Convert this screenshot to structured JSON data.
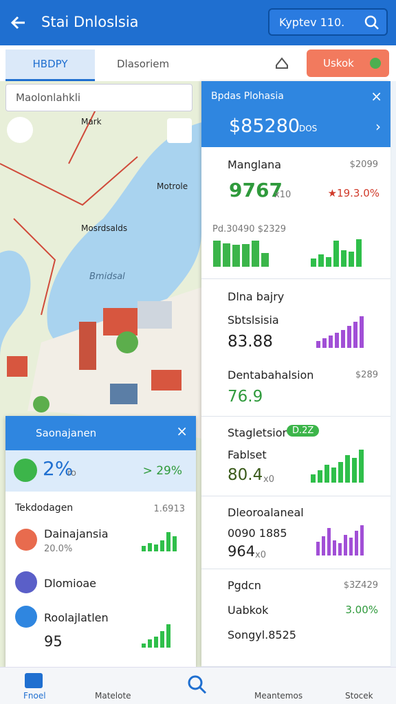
{
  "header": {
    "title": "Stai Dnloslsia",
    "search": "Kyptev 110."
  },
  "tabs": {
    "active": "HBDPY",
    "other": "Dlasoriem",
    "button": "Uskok"
  },
  "map": {
    "search": "Maolonlahkli",
    "labels": [
      "Mark",
      "Motrole",
      "Mosrdsalds",
      "Bmidsal"
    ]
  },
  "panel": {
    "title": "Bpdas Plohasia",
    "amount": "$85280",
    "unit": "DOS"
  },
  "cards": [
    {
      "title": "Manglana",
      "right": "$2099",
      "value": "9767",
      "suffix": "x10",
      "change": "★19.3.0%",
      "chart_label": "Pd.30490 $2329"
    },
    {
      "title": "Dlna bajry",
      "sub": "Sbtslsisia",
      "value": "83.88",
      "row2": "Dentabahalsion",
      "row2_right": "$289",
      "value2": "76.9"
    },
    {
      "title": "Stagletsior",
      "badge": "D.2Z",
      "sub": "Fablset",
      "value": "80.4",
      "suffix": "x0"
    },
    {
      "title": "Dleoroalaneal",
      "sub": "0090 1885",
      "value": "964",
      "suffix": "x0"
    },
    {
      "title": "Pgdcn",
      "right": "$3Z429",
      "sub": "Uabkok",
      "change": "3.00%",
      "row3": "Songyl.8525"
    }
  ],
  "overlay": {
    "title": "Saonajanen",
    "value": "2%",
    "suffix": "ro",
    "change": "> 29%",
    "section": "Tekdodagen",
    "section_right": "1.6913",
    "items": [
      {
        "title": "Dainajansia",
        "sub": "20.0%"
      },
      {
        "title": "Dlomioae"
      },
      {
        "title": "Roolajlatlen",
        "sub": "95"
      }
    ]
  },
  "sparklines": [
    {
      "values": [
        38,
        34,
        32,
        33,
        38,
        20
      ],
      "color": "#3bb54a"
    },
    {
      "values": [
        12,
        18,
        14,
        38,
        24,
        22,
        40
      ],
      "color": "#2fbf4a"
    },
    {
      "values": [
        10,
        14,
        18,
        22,
        26,
        32,
        38,
        46
      ],
      "color": "#a14fd6"
    },
    {
      "values": [
        8,
        12,
        10,
        16,
        28,
        22
      ],
      "color": "#2fbf4a"
    },
    {
      "values": [
        12,
        18,
        26,
        22,
        30,
        40,
        36,
        48
      ],
      "color": "#2fbf4a"
    },
    {
      "values": [
        20,
        28,
        40,
        22,
        18,
        30,
        26,
        36,
        44
      ],
      "color": "#a14fd6"
    },
    {
      "values": [
        6,
        12,
        16,
        24,
        34
      ],
      "color": "#2fbf4a"
    }
  ],
  "nav": [
    "Fnoel",
    "Matelote",
    "Meantemos",
    "Stocek"
  ]
}
